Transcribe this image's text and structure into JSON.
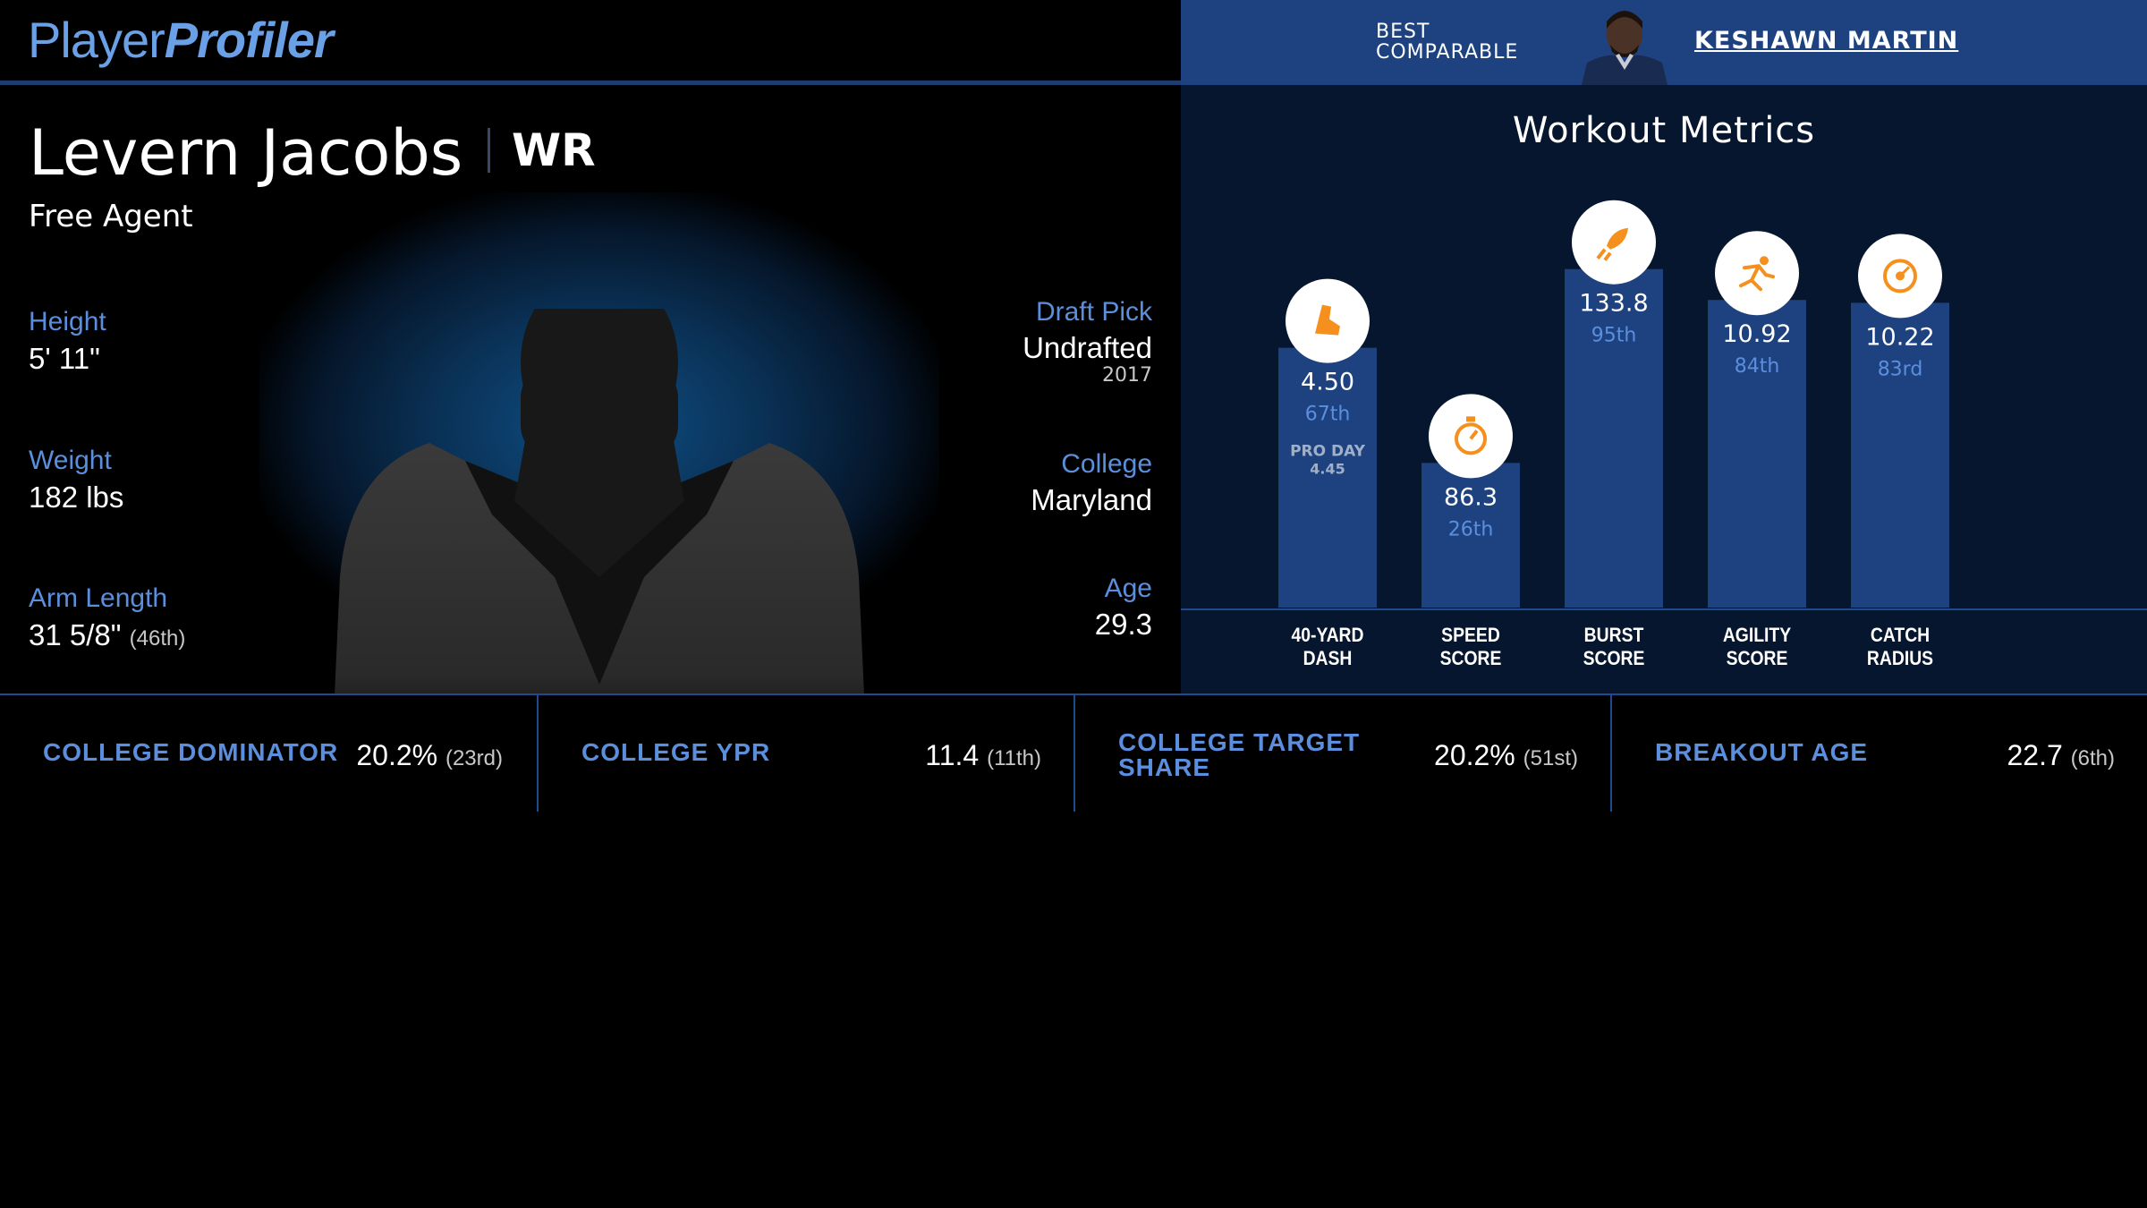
{
  "brand": {
    "word1": "Player",
    "word2": "Profiler"
  },
  "comparable": {
    "label_line1": "BEST",
    "label_line2": "COMPARABLE",
    "name": "KESHAWN MARTIN"
  },
  "player": {
    "name": "Levern Jacobs",
    "position": "WR",
    "team": "Free Agent",
    "height_label": "Height",
    "height": "5' 11\"",
    "weight_label": "Weight",
    "weight": "182 lbs",
    "arm_label": "Arm Length",
    "arm": "31 5/8\"",
    "arm_pct": "(46th)",
    "draft_label": "Draft Pick",
    "draft": "Undrafted",
    "draft_year": "2017",
    "college_label": "College",
    "college": "Maryland",
    "age_label": "Age",
    "age": "29.3"
  },
  "workout": {
    "title": "Workout Metrics",
    "accent": "#1e4280",
    "icon_color": "#f5901e",
    "pct_color": "#5b8fdd"
  },
  "chart_data": {
    "type": "bar",
    "categories": [
      "40-YARD DASH",
      "SPEED SCORE",
      "BURST SCORE",
      "AGILITY SCORE",
      "CATCH RADIUS"
    ],
    "category_lines": [
      [
        "40-YARD",
        "DASH"
      ],
      [
        "SPEED",
        "SCORE"
      ],
      [
        "BURST",
        "SCORE"
      ],
      [
        "AGILITY",
        "SCORE"
      ],
      [
        "CATCH",
        "RADIUS"
      ]
    ],
    "values": [
      "4.50",
      "86.3",
      "133.8",
      "10.92",
      "10.22"
    ],
    "percentiles": [
      67,
      26,
      95,
      84,
      83
    ],
    "percentile_labels": [
      "67th",
      "26th",
      "95th",
      "84th",
      "83rd"
    ],
    "icons": [
      "shoe-icon",
      "stopwatch-icon",
      "rocket-icon",
      "runner-icon",
      "target-icon"
    ],
    "notes": [
      [
        "PRO DAY",
        "4.45"
      ],
      null,
      null,
      null,
      null
    ]
  },
  "stats": [
    {
      "label": "COLLEGE DOMINATOR",
      "value": "20.2%",
      "pct": "(23rd)"
    },
    {
      "label": "COLLEGE YPR",
      "value": "11.4",
      "pct": "(11th)"
    },
    {
      "label_line1": "COLLEGE TARGET",
      "label_line2": "SHARE",
      "value": "20.2%",
      "pct": "(51st)"
    },
    {
      "label": "BREAKOUT AGE",
      "value": "22.7",
      "pct": "(6th)"
    }
  ]
}
